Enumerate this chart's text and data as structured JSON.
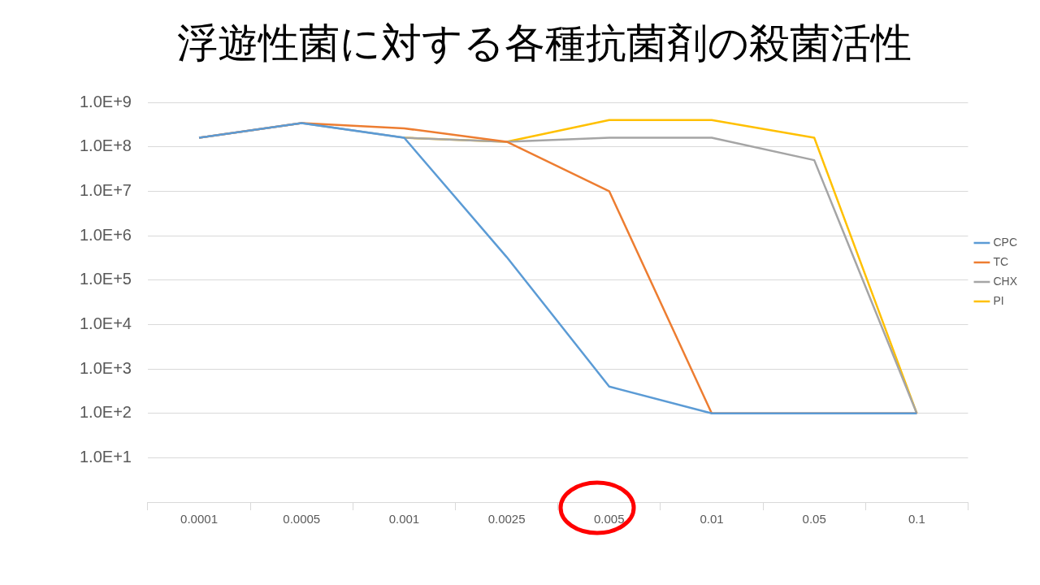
{
  "chart_data": {
    "type": "line",
    "title": "浮遊性菌に対する各種抗菌剤の殺菌活性",
    "categories": [
      "0.0001",
      "0.0005",
      "0.001",
      "0.0025",
      "0.005",
      "0.01",
      "0.05",
      "0.1"
    ],
    "series": [
      {
        "name": "CPC",
        "color": "#5b9bd5",
        "values": [
          160000000,
          340000000,
          160000000,
          330000,
          400,
          100,
          100,
          100
        ]
      },
      {
        "name": "TC",
        "color": "#ed7d31",
        "values": [
          160000000,
          340000000,
          260000000,
          130000000,
          10000000,
          100,
          100,
          100
        ]
      },
      {
        "name": "CHX",
        "color": "#a5a5a5",
        "values": [
          160000000,
          340000000,
          160000000,
          130000000,
          160000000,
          160000000,
          50000000,
          100
        ]
      },
      {
        "name": "PI",
        "color": "#ffc000",
        "values": [
          null,
          null,
          160000000,
          130000000,
          400000000,
          400000000,
          160000000,
          100
        ]
      }
    ],
    "log": true,
    "ylim": [
      1,
      1000000000
    ],
    "yticks": [
      {
        "value": 1,
        "label": null
      },
      {
        "value": 10,
        "label": "1.0E+1"
      },
      {
        "value": 100,
        "label": "1.0E+2"
      },
      {
        "value": 1000,
        "label": "1.0E+3"
      },
      {
        "value": 10000,
        "label": "1.0E+4"
      },
      {
        "value": 100000,
        "label": "1.0E+5"
      },
      {
        "value": 1000000,
        "label": "1.0E+6"
      },
      {
        "value": 10000000,
        "label": "1.0E+7"
      },
      {
        "value": 100000000,
        "label": "1.0E+8"
      },
      {
        "value": 1000000000,
        "label": "1.0E+9"
      }
    ],
    "grid": "y",
    "legend": "right",
    "marker": "none",
    "line_style": "solid"
  }
}
